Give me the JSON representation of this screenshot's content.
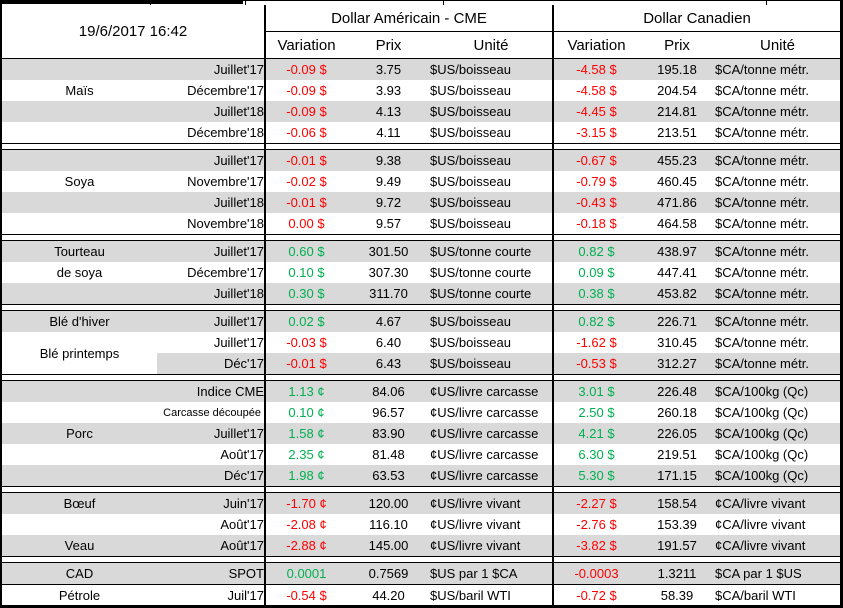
{
  "meta": {
    "timestamp": "19/6/2017 16:42"
  },
  "header": {
    "usd_title": "Dollar Américain - CME",
    "cad_title": "Dollar Canadien",
    "variation": "Variation",
    "prix": "Prix",
    "unite": "Unité"
  },
  "colors": {
    "positive": "#00B050",
    "negative": "#FF0000",
    "row_shade": "#D9D9D9",
    "grid": "#000000"
  },
  "sections": [
    {
      "id": "mais",
      "rows": [
        {
          "name": "",
          "month": "Juillet'17",
          "shade": true,
          "us_var": "-0.09 $",
          "us_trend": "neg",
          "us_prix": "3.75",
          "us_unit": "$US/boisseau",
          "ca_var": "-4.58 $",
          "ca_trend": "neg",
          "ca_prix": "195.18",
          "ca_unit": "$CA/tonne métr."
        },
        {
          "name": "Maïs",
          "month": "Décembre'17",
          "shade": false,
          "us_var": "-0.09 $",
          "us_trend": "neg",
          "us_prix": "3.93",
          "us_unit": "$US/boisseau",
          "ca_var": "-4.58 $",
          "ca_trend": "neg",
          "ca_prix": "204.54",
          "ca_unit": "$CA/tonne métr."
        },
        {
          "name": "",
          "month": "Juillet'18",
          "shade": true,
          "us_var": "-0.09 $",
          "us_trend": "neg",
          "us_prix": "4.13",
          "us_unit": "$US/boisseau",
          "ca_var": "-4.45 $",
          "ca_trend": "neg",
          "ca_prix": "214.81",
          "ca_unit": "$CA/tonne métr."
        },
        {
          "name": "",
          "month": "Décembre'18",
          "shade": false,
          "us_var": "-0.06 $",
          "us_trend": "neg",
          "us_prix": "4.11",
          "us_unit": "$US/boisseau",
          "ca_var": "-3.15 $",
          "ca_trend": "neg",
          "ca_prix": "213.51",
          "ca_unit": "$CA/tonne métr."
        }
      ]
    },
    {
      "id": "soya",
      "rows": [
        {
          "name": "",
          "month": "Juillet'17",
          "shade": true,
          "us_var": "-0.01 $",
          "us_trend": "neg",
          "us_prix": "9.38",
          "us_unit": "$US/boisseau",
          "ca_var": "-0.67 $",
          "ca_trend": "neg",
          "ca_prix": "455.23",
          "ca_unit": "$CA/tonne métr."
        },
        {
          "name": "Soya",
          "month": "Novembre'17",
          "shade": false,
          "us_var": "-0.02 $",
          "us_trend": "neg",
          "us_prix": "9.49",
          "us_unit": "$US/boisseau",
          "ca_var": "-0.79 $",
          "ca_trend": "neg",
          "ca_prix": "460.45",
          "ca_unit": "$CA/tonne métr."
        },
        {
          "name": "",
          "month": "Juillet'18",
          "shade": true,
          "us_var": "-0.01 $",
          "us_trend": "neg",
          "us_prix": "9.72",
          "us_unit": "$US/boisseau",
          "ca_var": "-0.43 $",
          "ca_trend": "neg",
          "ca_prix": "471.86",
          "ca_unit": "$CA/tonne métr."
        },
        {
          "name": "",
          "month": "Novembre'18",
          "shade": false,
          "us_var": "0.00 $",
          "us_trend": "neg",
          "us_prix": "9.57",
          "us_unit": "$US/boisseau",
          "ca_var": "-0.18 $",
          "ca_trend": "neg",
          "ca_prix": "464.58",
          "ca_unit": "$CA/tonne métr."
        }
      ]
    },
    {
      "id": "tourteau-de-soya",
      "rows": [
        {
          "name": "Tourteau",
          "month": "Juillet'17",
          "shade": true,
          "us_var": "0.60 $",
          "us_trend": "pos",
          "us_prix": "301.50",
          "us_unit": "$US/tonne courte",
          "ca_var": "0.82 $",
          "ca_trend": "pos",
          "ca_prix": "438.97",
          "ca_unit": "$CA/tonne métr."
        },
        {
          "name": "de soya",
          "month": "Décembre'17",
          "shade": false,
          "us_var": "0.10 $",
          "us_trend": "pos",
          "us_prix": "307.30",
          "us_unit": "$US/tonne courte",
          "ca_var": "0.09 $",
          "ca_trend": "pos",
          "ca_prix": "447.41",
          "ca_unit": "$CA/tonne métr."
        },
        {
          "name": "",
          "month": "Juillet'18",
          "shade": true,
          "us_var": "0.30 $",
          "us_trend": "pos",
          "us_prix": "311.70",
          "us_unit": "$US/tonne courte",
          "ca_var": "0.38 $",
          "ca_trend": "pos",
          "ca_prix": "453.82",
          "ca_unit": "$CA/tonne métr."
        }
      ]
    },
    {
      "id": "ble",
      "rows": [
        {
          "name": "Blé d'hiver",
          "month": "Juillet'17",
          "shade": true,
          "us_var": "0.02 $",
          "us_trend": "pos",
          "us_prix": "4.67",
          "us_unit": "$US/boisseau",
          "ca_var": "0.82 $",
          "ca_trend": "pos",
          "ca_prix": "226.71",
          "ca_unit": "$CA/tonne métr."
        },
        {
          "name": "Blé printemps",
          "name_rowspan": 2,
          "month": "Juillet'17",
          "shade": false,
          "us_var": "-0.03 $",
          "us_trend": "neg",
          "us_prix": "6.40",
          "us_unit": "$US/boisseau",
          "ca_var": "-1.62 $",
          "ca_trend": "neg",
          "ca_prix": "310.45",
          "ca_unit": "$CA/tonne métr."
        },
        {
          "skip_name": true,
          "month": "Déc'17",
          "shade": true,
          "us_var": "-0.01 $",
          "us_trend": "neg",
          "us_prix": "6.43",
          "us_unit": "$US/boisseau",
          "ca_var": "-0.53 $",
          "ca_trend": "neg",
          "ca_prix": "312.27",
          "ca_unit": "$CA/tonne métr."
        }
      ]
    },
    {
      "id": "porc",
      "rows": [
        {
          "name": "",
          "month": "Indice CME",
          "shade": true,
          "us_var": "1.13 ¢",
          "us_trend": "pos",
          "us_prix": "84.06",
          "us_unit": "¢US/livre carcasse",
          "ca_var": "3.01 $",
          "ca_trend": "pos",
          "ca_prix": "226.48",
          "ca_unit": "$CA/100kg (Qc)"
        },
        {
          "name": "",
          "month": "Carcasse découpée",
          "month_small": true,
          "shade": false,
          "us_var": "0.10 ¢",
          "us_trend": "pos",
          "us_prix": "96.57",
          "us_unit": "¢US/livre carcasse",
          "ca_var": "2.50 $",
          "ca_trend": "pos",
          "ca_prix": "260.18",
          "ca_unit": "$CA/100kg (Qc)"
        },
        {
          "name": "Porc",
          "month": "Juillet'17",
          "shade": true,
          "us_var": "1.58 ¢",
          "us_trend": "pos",
          "us_prix": "83.90",
          "us_unit": "¢US/livre carcasse",
          "ca_var": "4.21 $",
          "ca_trend": "pos",
          "ca_prix": "226.05",
          "ca_unit": "$CA/100kg (Qc)"
        },
        {
          "name": "",
          "month": "Août'17",
          "shade": false,
          "us_var": "2.35 ¢",
          "us_trend": "pos",
          "us_prix": "81.48",
          "us_unit": "¢US/livre carcasse",
          "ca_var": "6.30 $",
          "ca_trend": "pos",
          "ca_prix": "219.51",
          "ca_unit": "$CA/100kg (Qc)"
        },
        {
          "name": "",
          "month": "Déc'17",
          "shade": true,
          "us_var": "1.98 ¢",
          "us_trend": "pos",
          "us_prix": "63.53",
          "us_unit": "¢US/livre carcasse",
          "ca_var": "5.30 $",
          "ca_trend": "pos",
          "ca_prix": "171.15",
          "ca_unit": "$CA/100kg (Qc)"
        }
      ]
    },
    {
      "id": "boeuf-veau",
      "rows": [
        {
          "name": "Bœuf",
          "month": "Juin'17",
          "shade": true,
          "us_var": "-1.70 ¢",
          "us_trend": "neg",
          "us_prix": "120.00",
          "us_unit": "¢US/livre vivant",
          "ca_var": "-2.27 $",
          "ca_trend": "neg",
          "ca_prix": "158.54",
          "ca_unit": "¢CA/livre vivant"
        },
        {
          "name": "",
          "month": "Août'17",
          "shade": false,
          "us_var": "-2.08 ¢",
          "us_trend": "neg",
          "us_prix": "116.10",
          "us_unit": "¢US/livre vivant",
          "ca_var": "-2.76 $",
          "ca_trend": "neg",
          "ca_prix": "153.39",
          "ca_unit": "¢CA/livre vivant"
        },
        {
          "name": "Veau",
          "month": "Août'17",
          "shade": true,
          "us_var": "-2.88 ¢",
          "us_trend": "neg",
          "us_prix": "145.00",
          "us_unit": "¢US/livre vivant",
          "ca_var": "-3.82 $",
          "ca_trend": "neg",
          "ca_prix": "191.57",
          "ca_unit": "¢CA/livre vivant"
        }
      ]
    },
    {
      "id": "cad-petrole",
      "rows": [
        {
          "name": "CAD",
          "month": "SPOT",
          "shade": true,
          "us_var": "0.0001",
          "us_trend": "pos",
          "us_prix": "0.7569",
          "us_unit": "$US par 1 $CA",
          "ca_var": "-0.0003",
          "ca_trend": "neg",
          "ca_prix": "1.3211",
          "ca_unit": "$CA par 1 $US"
        },
        {
          "name": "Pétrole",
          "month": "Juil'17",
          "shade": false,
          "top_border": true,
          "us_var": "-0.54 $",
          "us_trend": "neg",
          "us_prix": "44.20",
          "us_unit": "$US/baril WTI",
          "ca_var": "-0.72 $",
          "ca_trend": "neg",
          "ca_prix": "58.39",
          "ca_unit": "$CA/baril WTI"
        }
      ]
    }
  ]
}
